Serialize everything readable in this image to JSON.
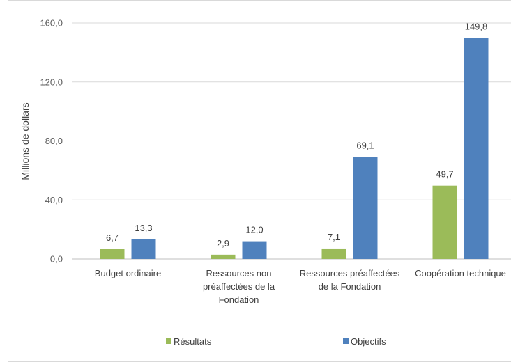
{
  "chart_data": {
    "type": "bar",
    "title": "",
    "ylabel": "Millions de dollars",
    "xlabel": "",
    "ylim": [
      0,
      160
    ],
    "yticks": [
      "0,0",
      "40,0",
      "80,0",
      "120,0",
      "160,0"
    ],
    "grid": true,
    "legend_position": "bottom",
    "categories": [
      [
        "Budget ordinaire"
      ],
      [
        "Ressources non",
        "préaffectées de la",
        "Fondation"
      ],
      [
        "Ressources préaffectées",
        "de la Fondation"
      ],
      [
        "Coopération technique"
      ]
    ],
    "series": [
      {
        "name": "Résultats",
        "color": "#9bbb59",
        "values": [
          6.7,
          2.9,
          7.1,
          49.7
        ],
        "labels": [
          "6,7",
          "2,9",
          "7,1",
          "49,7"
        ]
      },
      {
        "name": "Objectifs",
        "color": "#4f81bd",
        "values": [
          13.3,
          12.0,
          69.1,
          149.8
        ],
        "labels": [
          "13,3",
          "12,0",
          "69,1",
          "149,8"
        ]
      }
    ]
  }
}
